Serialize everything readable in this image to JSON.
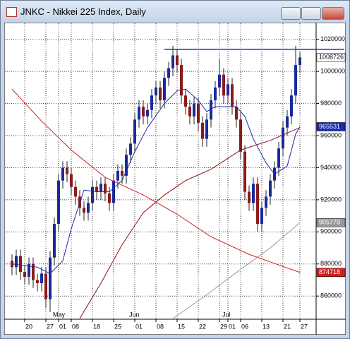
{
  "window": {
    "title": "JNKC - Nikkei 225 Index, Daily"
  },
  "chart_data": {
    "type": "candlestick",
    "categories": [
      null,
      null,
      null,
      "20",
      null,
      null,
      null,
      null,
      "27",
      null,
      null,
      "01",
      null,
      null,
      "08",
      null,
      null,
      null,
      null,
      "18",
      null,
      null,
      null,
      null,
      "25",
      null,
      null,
      null,
      null,
      "01",
      null,
      null,
      null,
      null,
      "08",
      null,
      null,
      null,
      null,
      "15",
      null,
      null,
      null,
      null,
      "22",
      null,
      null,
      null,
      null,
      "29",
      null,
      "01",
      null,
      null,
      "06",
      null,
      null,
      null,
      null,
      "13",
      null,
      null,
      null,
      null,
      "21",
      null,
      null,
      null,
      "27"
    ],
    "month_labels": [
      null,
      null,
      null,
      null,
      null,
      null,
      null,
      null,
      null,
      null,
      null,
      "May",
      null,
      null,
      null,
      null,
      null,
      null,
      null,
      null,
      null,
      null,
      null,
      null,
      null,
      null,
      null,
      null,
      null,
      "Jun",
      null,
      null,
      null,
      null,
      null,
      null,
      null,
      null,
      null,
      null,
      null,
      null,
      null,
      null,
      null,
      null,
      null,
      null,
      null,
      null,
      null,
      "Jul",
      null,
      null,
      null,
      null,
      null,
      null,
      null,
      null,
      null,
      null,
      null,
      null,
      null,
      null,
      null,
      null,
      null
    ],
    "open": [
      882000,
      878000,
      885000,
      875000,
      872000,
      880000,
      870000,
      868000,
      874000,
      858000,
      884000,
      905000,
      932000,
      940000,
      936000,
      928000,
      922000,
      915000,
      912000,
      918000,
      928000,
      925000,
      930000,
      924000,
      918000,
      932000,
      938000,
      935000,
      948000,
      955000,
      970000,
      978000,
      972000,
      976000,
      985000,
      990000,
      982000,
      996000,
      1002000,
      1010000,
      1004000,
      985000,
      978000,
      972000,
      980000,
      968000,
      958000,
      970000,
      982000,
      990000,
      998000,
      985000,
      992000,
      978000,
      970000,
      950000,
      925000,
      918000,
      930000,
      905000,
      915000,
      922000,
      932000,
      940000,
      952000,
      965000,
      972000,
      985000,
      1004000
    ],
    "high": [
      886000,
      889000,
      889000,
      879000,
      884000,
      884000,
      874000,
      878000,
      878000,
      888000,
      909000,
      936000,
      944000,
      944000,
      940000,
      932000,
      926000,
      919000,
      922000,
      932000,
      932000,
      934000,
      934000,
      928000,
      936000,
      942000,
      942000,
      952000,
      959000,
      974000,
      982000,
      982000,
      980000,
      989000,
      994000,
      994000,
      1000000,
      1006000,
      1016000,
      1014000,
      1008000,
      989000,
      982000,
      984000,
      984000,
      972000,
      974000,
      986000,
      994000,
      1008000,
      1002000,
      996000,
      996000,
      982000,
      974000,
      954000,
      929000,
      934000,
      934000,
      919000,
      926000,
      936000,
      944000,
      956000,
      969000,
      976000,
      989000,
      1016000,
      1012000
    ],
    "low": [
      873000,
      873000,
      870000,
      867000,
      867000,
      865000,
      863000,
      863000,
      853000,
      850000,
      879000,
      900000,
      927000,
      931000,
      923000,
      917000,
      910000,
      907000,
      907000,
      913000,
      920000,
      920000,
      919000,
      913000,
      913000,
      927000,
      930000,
      930000,
      943000,
      950000,
      965000,
      967000,
      967000,
      971000,
      980000,
      977000,
      977000,
      991000,
      997000,
      999000,
      980000,
      973000,
      967000,
      967000,
      963000,
      953000,
      953000,
      965000,
      977000,
      985000,
      980000,
      980000,
      973000,
      965000,
      945000,
      920000,
      913000,
      913000,
      900000,
      900000,
      910000,
      917000,
      927000,
      935000,
      947000,
      960000,
      967000,
      980000,
      999000
    ],
    "close": [
      878000,
      885000,
      875000,
      872000,
      880000,
      870000,
      868000,
      874000,
      858000,
      884000,
      905000,
      932000,
      940000,
      936000,
      928000,
      922000,
      915000,
      912000,
      918000,
      928000,
      925000,
      930000,
      924000,
      918000,
      932000,
      938000,
      935000,
      948000,
      955000,
      970000,
      978000,
      972000,
      976000,
      985000,
      990000,
      982000,
      996000,
      1002000,
      1010000,
      1004000,
      985000,
      978000,
      972000,
      980000,
      968000,
      958000,
      970000,
      982000,
      990000,
      998000,
      985000,
      992000,
      978000,
      970000,
      950000,
      925000,
      918000,
      930000,
      905000,
      915000,
      922000,
      932000,
      940000,
      952000,
      965000,
      972000,
      985000,
      1004000,
      1008726
    ],
    "up_color": "#1a2a9e",
    "down_color": "#8b1a1a",
    "lines": [
      {
        "color": "#1a2aa8",
        "x": [
          0,
          6,
          9,
          12,
          14,
          17,
          20,
          23,
          26,
          29,
          32,
          36,
          39,
          41,
          44,
          46,
          48,
          51,
          53,
          55,
          57,
          60,
          62,
          65,
          67,
          68
        ],
        "values": [
          880000,
          878000,
          874000,
          882000,
          902000,
          926000,
          925000,
          925000,
          932000,
          950000,
          965000,
          980000,
          988000,
          989000,
          982000,
          975000,
          978000,
          978000,
          978000,
          972000,
          958000,
          943000,
          936000,
          941000,
          961000,
          965531
        ]
      },
      {
        "color": "#d02020",
        "x": [
          0,
          7,
          14,
          22,
          31,
          39,
          47,
          56,
          68
        ],
        "values": [
          989000,
          969000,
          951000,
          934000,
          923000,
          911000,
          897000,
          886000,
          874718
        ]
      },
      {
        "color": "#999999",
        "x": [
          38,
          46,
          53,
          61,
          68
        ],
        "values": [
          846000,
          860800,
          874700,
          890000,
          905779
        ]
      },
      {
        "color": "#8b1010",
        "x": [
          16,
          21,
          26,
          31,
          36,
          41,
          47,
          54,
          61,
          68
        ],
        "values": [
          846000,
          868000,
          892000,
          912000,
          923000,
          932000,
          939000,
          951000,
          957000,
          965000
        ]
      }
    ],
    "level": {
      "value": 1013800,
      "color": "#1a2aa8",
      "from": 36
    },
    "ylim": [
      846000,
      1030000
    ],
    "yticks": [
      860000,
      880000,
      900000,
      920000,
      940000,
      960000,
      980000,
      1000000,
      1020000
    ],
    "grid": true
  }
}
